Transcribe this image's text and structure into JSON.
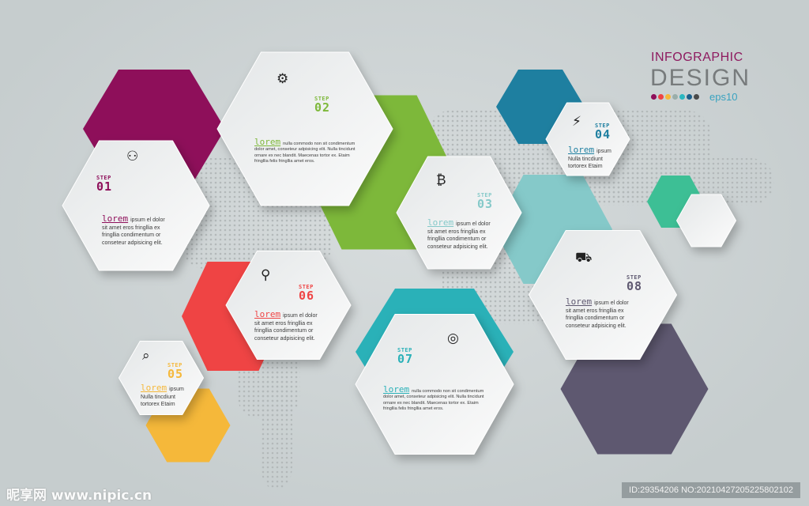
{
  "header": {
    "title_line1": "INFOGRAPHIC",
    "title_line2": "DESIGN",
    "format": "eps10",
    "palette": [
      "#8e0f5a",
      "#ef4444",
      "#f5b83a",
      "#9aaeaa",
      "#2ab7c0",
      "#1e5f8a",
      "#4a4a4a"
    ]
  },
  "colors": {
    "step01": "#8e0f5a",
    "step02": "#7db83a",
    "step03": "#85c9c9",
    "step04": "#1e7fa0",
    "step05": "#f5b83a",
    "step06": "#ef4444",
    "step07": "#2ab1b8",
    "step08": "#5e5870",
    "extra": "#3dbf95"
  },
  "steps": [
    {
      "label": "STEP",
      "number": "01",
      "lorem": "lorem",
      "text": "ipsum el dolor sit amet eros fringllia ex fringllia condimentum or conseteur adpisicing elit.",
      "icon": "team-icon"
    },
    {
      "label": "STEP",
      "number": "02",
      "lorem": "lorem",
      "text": "nulla commodo non sit condimentum dolor amet, conseteur adpisicing elit. Nulla tincidunt ornare ex nec blandit. Maecenas tortor ex. Etaim fringllia felis fringllia amet eros.",
      "icon": "gears-icon"
    },
    {
      "label": "STEP",
      "number": "03",
      "lorem": "lorem",
      "text": "ipsum el dolor sit amet eros fringllia ex fringllia condimentum or conseteur adpisicing elit.",
      "icon": "bitcoin-icon"
    },
    {
      "label": "STEP",
      "number": "04",
      "lorem": "lorem",
      "text": "ipsum Nulla tincdiunt tortorex Etaim",
      "icon": "plug-icon"
    },
    {
      "label": "STEP",
      "number": "05",
      "lorem": "lorem",
      "text": "ipsum Nulla tincdiunt tortorex Etaim",
      "icon": "search-icon"
    },
    {
      "label": "STEP",
      "number": "06",
      "lorem": "lorem",
      "text": "ipsum el dolor sit amet eros fringllia ex fringllia condimentum or conseteur adpisicing elit.",
      "icon": "telescope-icon"
    },
    {
      "label": "STEP",
      "number": "07",
      "lorem": "lorem",
      "text": "nulla commodo non sit condimentum dolor amet, conseteur adpisicing elit. Nulla tincidunt ornare ex nec blandit. Maecenas tortor ex. Etaim fringllia felis fringllia amet eros.",
      "icon": "target-icon"
    },
    {
      "label": "STEP",
      "number": "08",
      "lorem": "lorem",
      "text": "ipsum el dolor sit amet eros fringllia ex fringllia condimentum or conseteur adpisicing elit.",
      "icon": "truck-icon"
    }
  ],
  "watermark": {
    "site": "昵享网 www.nipic.cn",
    "id": "ID:29354206 NO:20210427205225802102"
  }
}
